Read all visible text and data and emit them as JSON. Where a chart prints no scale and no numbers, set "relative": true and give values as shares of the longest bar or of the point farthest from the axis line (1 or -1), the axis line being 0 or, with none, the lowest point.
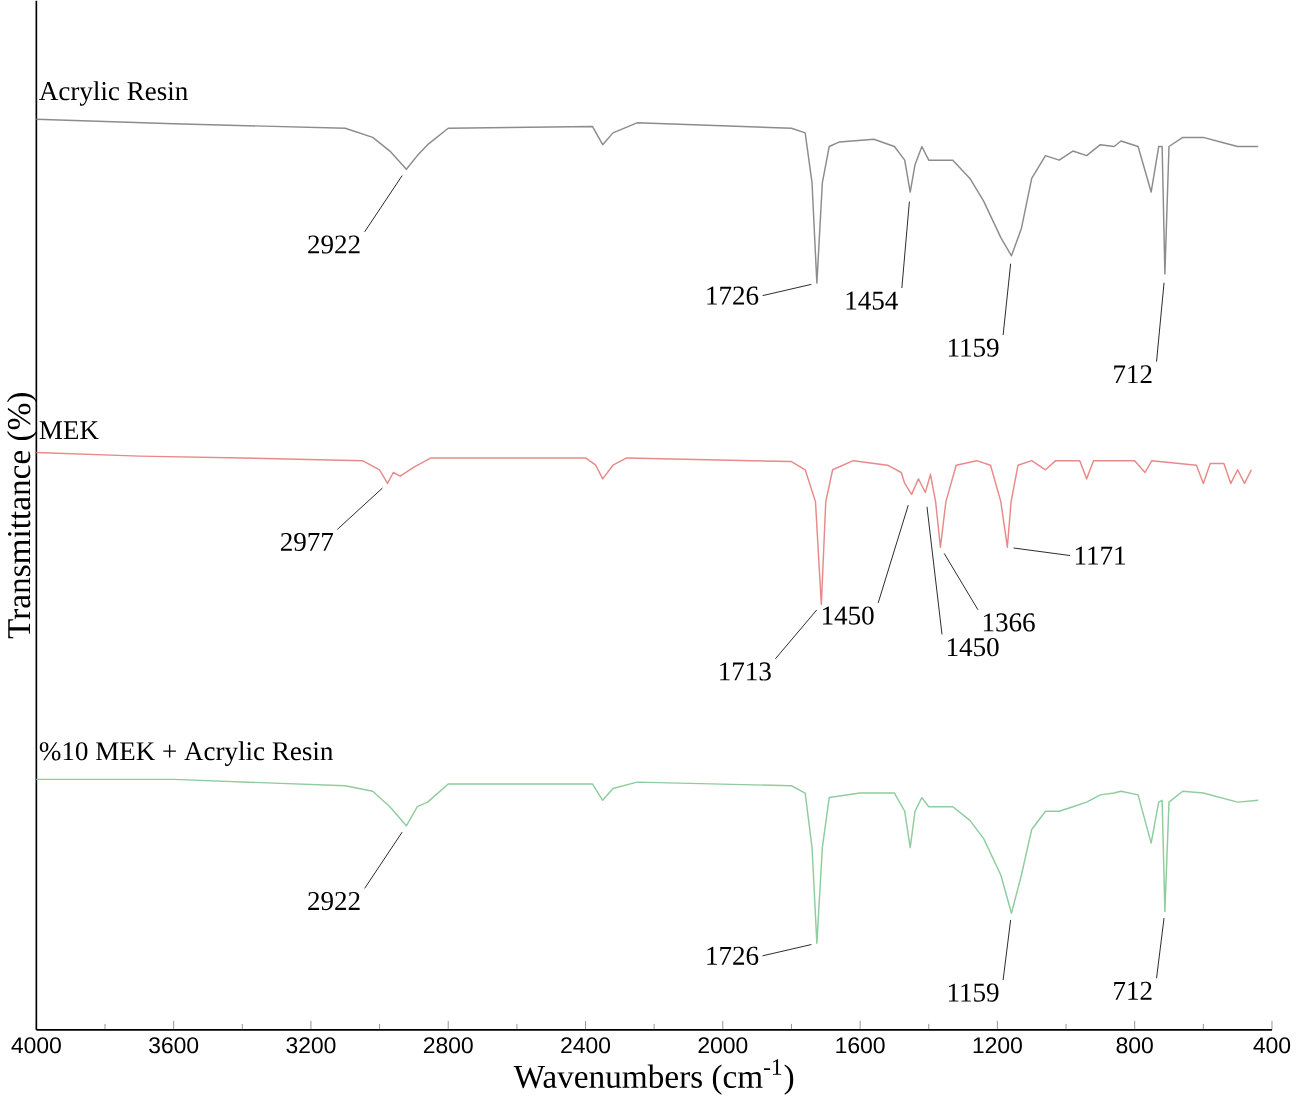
{
  "chart_data": {
    "type": "line",
    "relative": true,
    "xlabel": "Wavenumbers (cm$^{-1}$)",
    "ylabel": "Transmittance (%)",
    "xlim": [
      4000,
      400
    ],
    "xticks": [
      4000,
      3600,
      3200,
      2800,
      2400,
      2000,
      1600,
      1200,
      800,
      400
    ],
    "series": [
      {
        "name": "Acrylic Resin",
        "color": "#8c8c8c",
        "x": [
          4000,
          3600,
          3100,
          3020,
          2970,
          2922,
          2890,
          2860,
          2800,
          2380,
          2350,
          2320,
          2250,
          1800,
          1760,
          1740,
          1726,
          1710,
          1690,
          1660,
          1560,
          1500,
          1470,
          1454,
          1440,
          1420,
          1400,
          1330,
          1280,
          1240,
          1190,
          1159,
          1130,
          1100,
          1060,
          1020,
          980,
          940,
          900,
          860,
          840,
          790,
          752,
          730,
          720,
          712,
          700,
          660,
          600,
          550,
          500,
          440
        ],
        "values": [
          1.0,
          0.995,
          0.99,
          0.98,
          0.965,
          0.945,
          0.96,
          0.972,
          0.99,
          0.992,
          0.972,
          0.985,
          0.996,
          0.99,
          0.985,
          0.93,
          0.82,
          0.93,
          0.97,
          0.975,
          0.978,
          0.97,
          0.955,
          0.92,
          0.95,
          0.97,
          0.955,
          0.955,
          0.935,
          0.91,
          0.87,
          0.85,
          0.88,
          0.935,
          0.96,
          0.955,
          0.965,
          0.96,
          0.972,
          0.97,
          0.976,
          0.97,
          0.92,
          0.97,
          0.97,
          0.83,
          0.97,
          0.98,
          0.98,
          0.975,
          0.97,
          0.97
        ]
      },
      {
        "name": "MEK",
        "color": "#e88a8a",
        "x": [
          4000,
          3700,
          3400,
          3050,
          3000,
          2977,
          2960,
          2940,
          2900,
          2850,
          2400,
          2370,
          2350,
          2320,
          2280,
          1800,
          1760,
          1730,
          1713,
          1700,
          1680,
          1620,
          1520,
          1480,
          1470,
          1450,
          1430,
          1410,
          1395,
          1380,
          1366,
          1350,
          1320,
          1260,
          1220,
          1190,
          1171,
          1160,
          1140,
          1100,
          1060,
          1030,
          960,
          940,
          920,
          800,
          770,
          750,
          620,
          600,
          580,
          540,
          520,
          500,
          480,
          460
        ],
        "values": [
          0.634,
          0.63,
          0.628,
          0.625,
          0.615,
          0.6,
          0.612,
          0.608,
          0.618,
          0.628,
          0.628,
          0.62,
          0.605,
          0.62,
          0.628,
          0.624,
          0.615,
          0.58,
          0.467,
          0.58,
          0.615,
          0.625,
          0.62,
          0.612,
          0.6,
          0.588,
          0.605,
          0.59,
          0.61,
          0.58,
          0.53,
          0.58,
          0.62,
          0.625,
          0.62,
          0.58,
          0.53,
          0.58,
          0.62,
          0.625,
          0.615,
          0.625,
          0.625,
          0.605,
          0.625,
          0.625,
          0.612,
          0.625,
          0.62,
          0.6,
          0.622,
          0.622,
          0.6,
          0.615,
          0.6,
          0.615
        ]
      },
      {
        "name": "%10 MEK + Acrylic Resin",
        "color": "#8fcc9f",
        "x": [
          4000,
          3600,
          3100,
          3020,
          2970,
          2922,
          2890,
          2860,
          2800,
          2380,
          2350,
          2320,
          2250,
          1800,
          1760,
          1740,
          1726,
          1710,
          1690,
          1600,
          1500,
          1470,
          1454,
          1440,
          1420,
          1400,
          1330,
          1280,
          1240,
          1190,
          1159,
          1130,
          1100,
          1060,
          1020,
          980,
          940,
          900,
          860,
          840,
          790,
          752,
          730,
          720,
          712,
          700,
          660,
          600,
          550,
          500,
          440
        ],
        "values": [
          0.275,
          0.275,
          0.268,
          0.262,
          0.245,
          0.224,
          0.245,
          0.25,
          0.27,
          0.27,
          0.252,
          0.265,
          0.272,
          0.268,
          0.26,
          0.2,
          0.095,
          0.2,
          0.255,
          0.26,
          0.26,
          0.24,
          0.2,
          0.24,
          0.255,
          0.245,
          0.245,
          0.23,
          0.21,
          0.17,
          0.128,
          0.17,
          0.22,
          0.24,
          0.24,
          0.245,
          0.25,
          0.258,
          0.26,
          0.262,
          0.258,
          0.205,
          0.25,
          0.252,
          0.13,
          0.25,
          0.262,
          0.26,
          0.255,
          0.25,
          0.252
        ]
      }
    ],
    "annotations": [
      {
        "text": "2922",
        "x": 2922,
        "y": 0.945
      },
      {
        "text": "1726",
        "x": 1726,
        "y": 0.82
      },
      {
        "text": "1454",
        "x": 1454,
        "y": 0.92
      },
      {
        "text": "1159",
        "x": 1159,
        "y": 0.85
      },
      {
        "text": "712",
        "x": 712,
        "y": 0.83
      },
      {
        "text": "2977",
        "x": 2977,
        "y": 0.6
      },
      {
        "text": "1713",
        "x": 1713,
        "y": 0.467
      },
      {
        "text": "1450",
        "x": 1450,
        "y": 0.588
      },
      {
        "text": "1450",
        "x": 1410,
        "y": 0.59
      },
      {
        "text": "1366",
        "x": 1366,
        "y": 0.53
      },
      {
        "text": "1171",
        "x": 1171,
        "y": 0.53
      },
      {
        "text": "2922",
        "x": 2922,
        "y": 0.224
      },
      {
        "text": "1726",
        "x": 1726,
        "y": 0.095
      },
      {
        "text": "1159",
        "x": 1159,
        "y": 0.128
      },
      {
        "text": "712",
        "x": 712,
        "y": 0.13
      }
    ]
  }
}
